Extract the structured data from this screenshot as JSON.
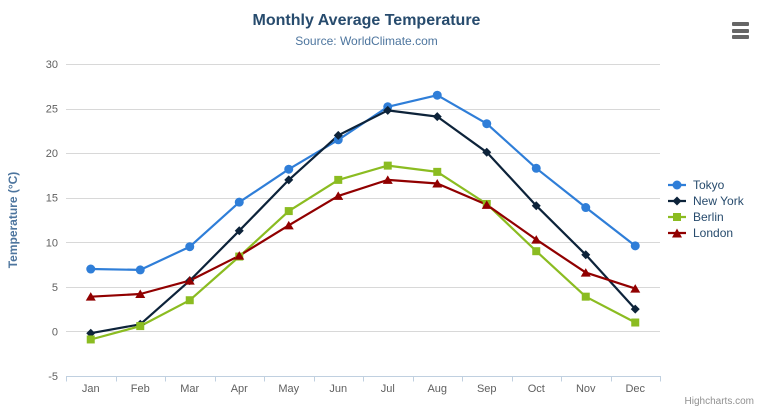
{
  "credits_label": "Highcharts.com",
  "context_menu": {
    "icon": "hamburger-menu-icon"
  },
  "chart_data": {
    "type": "line",
    "title": "Monthly Average Temperature",
    "subtitle": "Source: WorldClimate.com",
    "categories": [
      "Jan",
      "Feb",
      "Mar",
      "Apr",
      "May",
      "Jun",
      "Jul",
      "Aug",
      "Sep",
      "Oct",
      "Nov",
      "Dec"
    ],
    "xlabel": "",
    "ylabel": "Temperature (°C)",
    "ylim": [
      -5,
      30
    ],
    "y_tick_interval": 5,
    "y_tick_labels": [
      "-5",
      "0",
      "5",
      "10",
      "15",
      "20",
      "25",
      "30"
    ],
    "grid": true,
    "legend_position": "right",
    "series": [
      {
        "name": "Tokyo",
        "color": "#2f7ed8",
        "marker": "circle",
        "values": [
          7.0,
          6.9,
          9.5,
          14.5,
          18.2,
          21.5,
          25.2,
          26.5,
          23.3,
          18.3,
          13.9,
          9.6
        ]
      },
      {
        "name": "New York",
        "color": "#0d233a",
        "marker": "diamond",
        "values": [
          -0.2,
          0.8,
          5.7,
          11.3,
          17.0,
          22.0,
          24.8,
          24.1,
          20.1,
          14.1,
          8.6,
          2.5
        ]
      },
      {
        "name": "Berlin",
        "color": "#8bbc21",
        "marker": "square",
        "values": [
          -0.9,
          0.6,
          3.5,
          8.4,
          13.5,
          17.0,
          18.6,
          17.9,
          14.3,
          9.0,
          3.9,
          1.0
        ]
      },
      {
        "name": "London",
        "color": "#910000",
        "marker": "triangle",
        "values": [
          3.9,
          4.2,
          5.7,
          8.5,
          11.9,
          15.2,
          17.0,
          16.6,
          14.2,
          10.3,
          6.6,
          4.8
        ]
      }
    ],
    "colors": {
      "title": "#274b6d",
      "subtitle": "#4d759e",
      "axis_title": "#4d759e",
      "axis_label": "#606060",
      "gridline": "#d8d8d8",
      "axis_line": "#c0d0e0",
      "legend_text": "#274b6d",
      "credits": "#909090",
      "menu_icon": "#666666"
    }
  }
}
